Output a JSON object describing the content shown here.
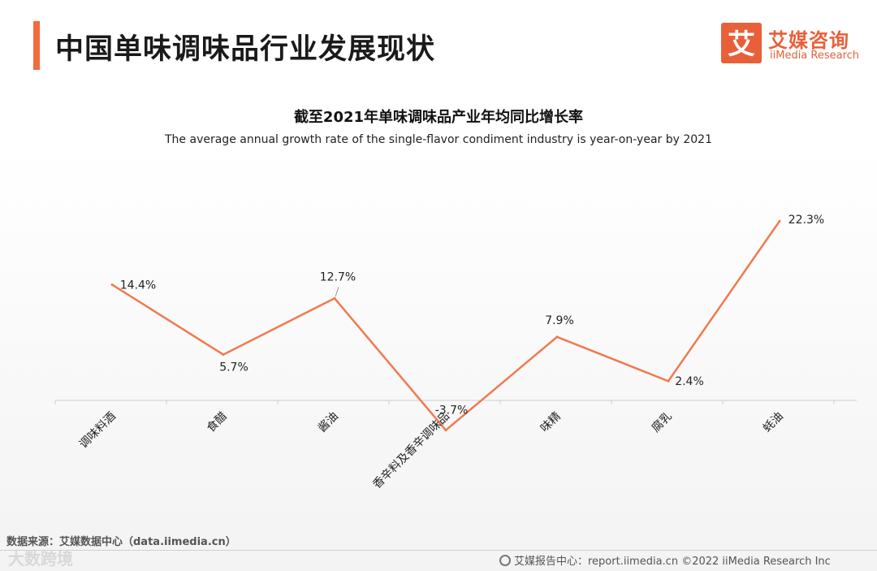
{
  "header": {
    "title": "中国单味调味品行业发展现状",
    "logo_cn": "艾媒咨询",
    "logo_en": "iiMedia Research",
    "logo_mark_glyph": "艾"
  },
  "chart_data": {
    "type": "line",
    "title": "截至2021年单味调味品产业年均同比增长率",
    "subtitle": "The average annual growth rate of the single-flavor condiment industry is year-on-year by 2021",
    "categories": [
      "调味料酒",
      "食醋",
      "酱油",
      "香辛料及香辛调味品",
      "味精",
      "腐乳",
      "蚝油"
    ],
    "values": [
      14.4,
      5.7,
      12.7,
      -3.7,
      7.9,
      2.4,
      22.3
    ],
    "data_labels": [
      "14.4%",
      "5.7%",
      "12.7%",
      "-3.7%",
      "7.9%",
      "2.4%",
      "22.3%"
    ],
    "unit": "%",
    "color": "#f07a4f",
    "grid": false
  },
  "footer": {
    "source": "数据来源：艾媒数据中心（data.iimedia.cn）",
    "report": "艾媒报告中心：report.iimedia.cn   ©2022  iiMedia Research  Inc",
    "watermark": "大数跨境"
  }
}
